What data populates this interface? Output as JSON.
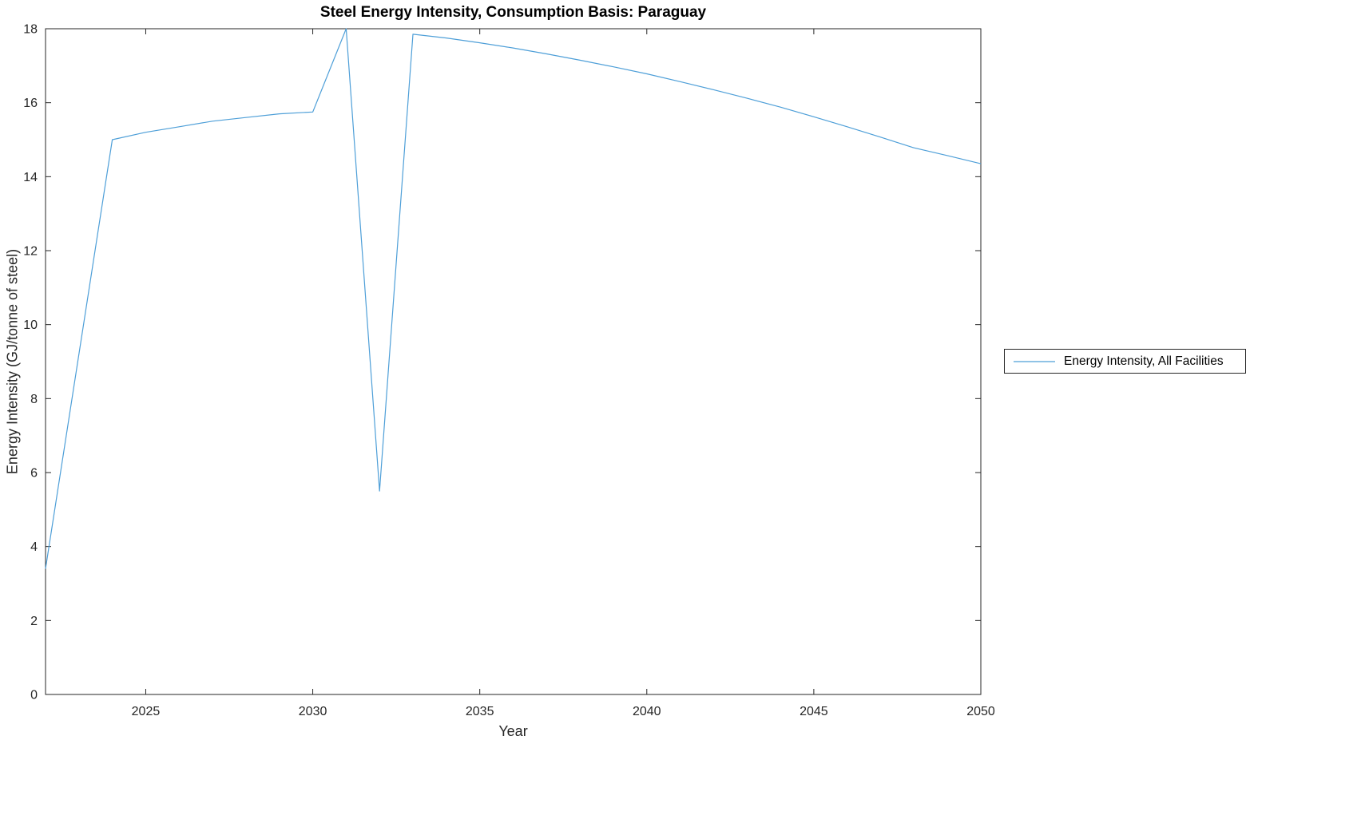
{
  "page": {
    "background_color": "#ffffff"
  },
  "chart_data": {
    "type": "line",
    "title": "Steel Energy Intensity, Consumption Basis: Paraguay",
    "xlabel": "Year",
    "ylabel": "Energy Intensity (GJ/tonne of steel)",
    "xlim": [
      2022,
      2050
    ],
    "ylim": [
      0,
      18
    ],
    "xticks": [
      2025,
      2030,
      2035,
      2040,
      2045,
      2050
    ],
    "yticks": [
      0,
      2,
      4,
      6,
      8,
      10,
      12,
      14,
      16,
      18
    ],
    "grid": false,
    "legend_position": "right-outside",
    "line_color": "#4e9fd8",
    "axis_color": "#262626",
    "series": [
      {
        "name": "Energy Intensity, All Facilities",
        "x": [
          2022,
          2024,
          2025,
          2026,
          2027,
          2028,
          2029,
          2030,
          2031,
          2032,
          2033,
          2034,
          2035,
          2036,
          2037,
          2038,
          2039,
          2040,
          2041,
          2042,
          2043,
          2044,
          2045,
          2046,
          2047,
          2048,
          2049,
          2050
        ],
        "y": [
          3.4,
          15.0,
          15.2,
          15.35,
          15.5,
          15.6,
          15.7,
          15.75,
          18.0,
          5.5,
          17.85,
          17.75,
          17.62,
          17.48,
          17.32,
          17.15,
          16.97,
          16.78,
          16.57,
          16.35,
          16.12,
          15.88,
          15.62,
          15.35,
          15.07,
          14.78,
          14.57,
          14.35
        ]
      }
    ]
  }
}
